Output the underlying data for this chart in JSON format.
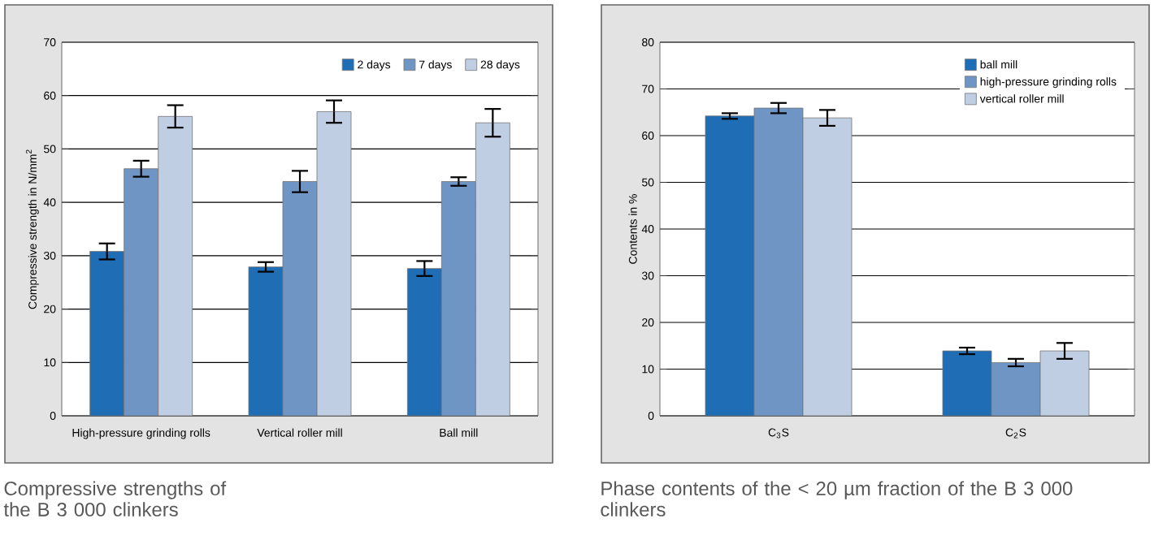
{
  "chart_data": [
    {
      "type": "bar",
      "ylabel": "Compressive strength in N/mm$^{2}$",
      "categories": [
        "High-pressure grinding rolls",
        "Vertical roller mill",
        "Ball mill"
      ],
      "series": [
        {
          "name": "2 days",
          "color": "#1f6db5",
          "values": [
            30.8,
            27.9,
            27.6
          ],
          "errors": [
            1.5,
            0.9,
            1.4
          ]
        },
        {
          "name": "7 days",
          "color": "#6f95c5",
          "values": [
            46.3,
            43.9,
            43.9
          ],
          "errors": [
            1.5,
            2,
            0.8
          ]
        },
        {
          "name": "28 days",
          "color": "#c0cee3",
          "values": [
            56.1,
            57,
            54.9
          ],
          "errors": [
            2.1,
            2.1,
            2.6
          ]
        }
      ],
      "ylim": [
        0,
        70
      ],
      "yticks": [
        0,
        10,
        20,
        30,
        40,
        50,
        60,
        70
      ],
      "grid": "y",
      "legend": "top right",
      "annotations": [
        "Compressive strengths of the B 3 000 clinkers"
      ]
    },
    {
      "type": "bar",
      "ylabel": "Contents in %",
      "categories": [
        "C$_{3}$S",
        "C$_{2}$S"
      ],
      "series": [
        {
          "name": "ball mill",
          "color": "#1f6db5",
          "values": [
            64.2,
            13.9
          ],
          "errors": [
            0.6,
            0.7
          ]
        },
        {
          "name": "high-pressure grinding rolls",
          "color": "#6f95c5",
          "values": [
            65.9,
            11.4
          ],
          "errors": [
            1.1,
            0.8
          ]
        },
        {
          "name": "vertical roller mill",
          "color": "#c0cee3",
          "values": [
            63.8,
            13.9
          ],
          "errors": [
            1.7,
            1.7
          ]
        }
      ],
      "ylim": [
        0,
        80
      ],
      "yticks": [
        0,
        10,
        20,
        30,
        40,
        50,
        60,
        70,
        80
      ],
      "grid": "y",
      "legend": "top right",
      "annotations": [
        "Phase contents of the < 20 µm fraction of the B 3 000 clinkers"
      ]
    }
  ]
}
